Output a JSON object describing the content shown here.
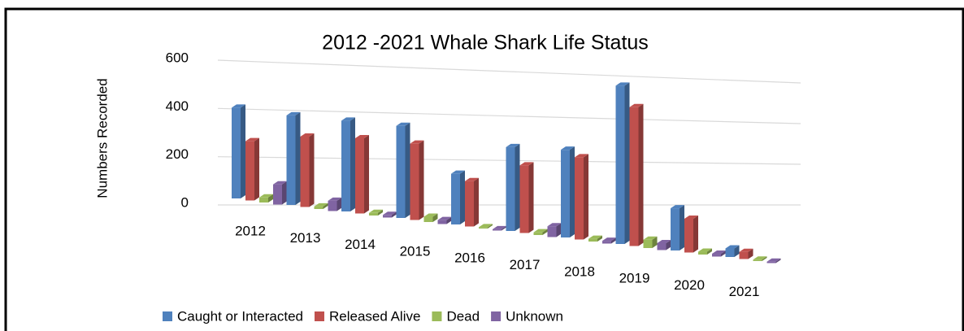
{
  "chart_data": {
    "type": "bar3d",
    "title": "2012 -2021 Whale Shark Life Status",
    "y_label": "Numbers Recorded",
    "categories": [
      "2012",
      "2013",
      "2014",
      "2015",
      "2016",
      "2017",
      "2018",
      "2019",
      "2020",
      "2021"
    ],
    "series": [
      {
        "name": "Caught or Interacted",
        "color": "#4F81BD",
        "values": [
          360,
          350,
          350,
          350,
          190,
          310,
          320,
          570,
          150,
          30
        ]
      },
      {
        "name": "Released Alive",
        "color": "#C0504D",
        "values": [
          235,
          275,
          290,
          290,
          170,
          250,
          300,
          500,
          120,
          25
        ]
      },
      {
        "name": "Dead",
        "color": "#9BBB59",
        "values": [
          20,
          10,
          10,
          20,
          5,
          10,
          10,
          30,
          10,
          5
        ]
      },
      {
        "name": "Unknown",
        "color": "#8064A2",
        "values": [
          80,
          40,
          10,
          15,
          5,
          40,
          10,
          25,
          10,
          5
        ]
      }
    ],
    "ylim": [
      0,
      600
    ],
    "yticks": [
      0,
      200,
      400,
      600
    ],
    "grid": true,
    "legend": "bottom"
  }
}
